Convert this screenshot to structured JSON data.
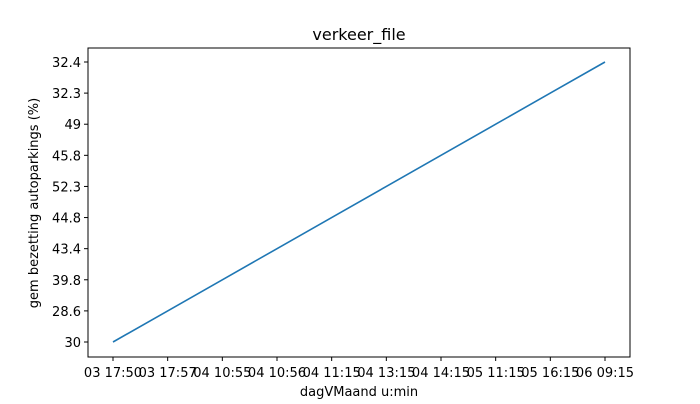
{
  "chart_data": {
    "type": "line",
    "title": "verkeer_file",
    "xlabel": "dagVMaand u:min",
    "ylabel": "gem bezetting autoparkings (%)",
    "categories": [
      "03 17:50",
      "03 17:57",
      "04 10:55",
      "04 10:56",
      "04 11:15",
      "04 13:15",
      "04 14:15",
      "05 11:15",
      "05 16:15",
      "06 09:15"
    ],
    "y_categories": [
      "30",
      "28.6",
      "39.8",
      "43.4",
      "44.8",
      "52.3",
      "45.8",
      "49",
      "32.3",
      "32.4"
    ],
    "series": [
      {
        "values": [
          "30",
          "28.6",
          "39.8",
          "43.4",
          "44.8",
          "52.3",
          "45.8",
          "49",
          "32.3",
          "32.4"
        ],
        "color": "#1f77b4"
      }
    ],
    "axis_note": "y axis is categorical: tick labels appear in order of the data, not numeric order",
    "grid": false,
    "legend": "none"
  }
}
